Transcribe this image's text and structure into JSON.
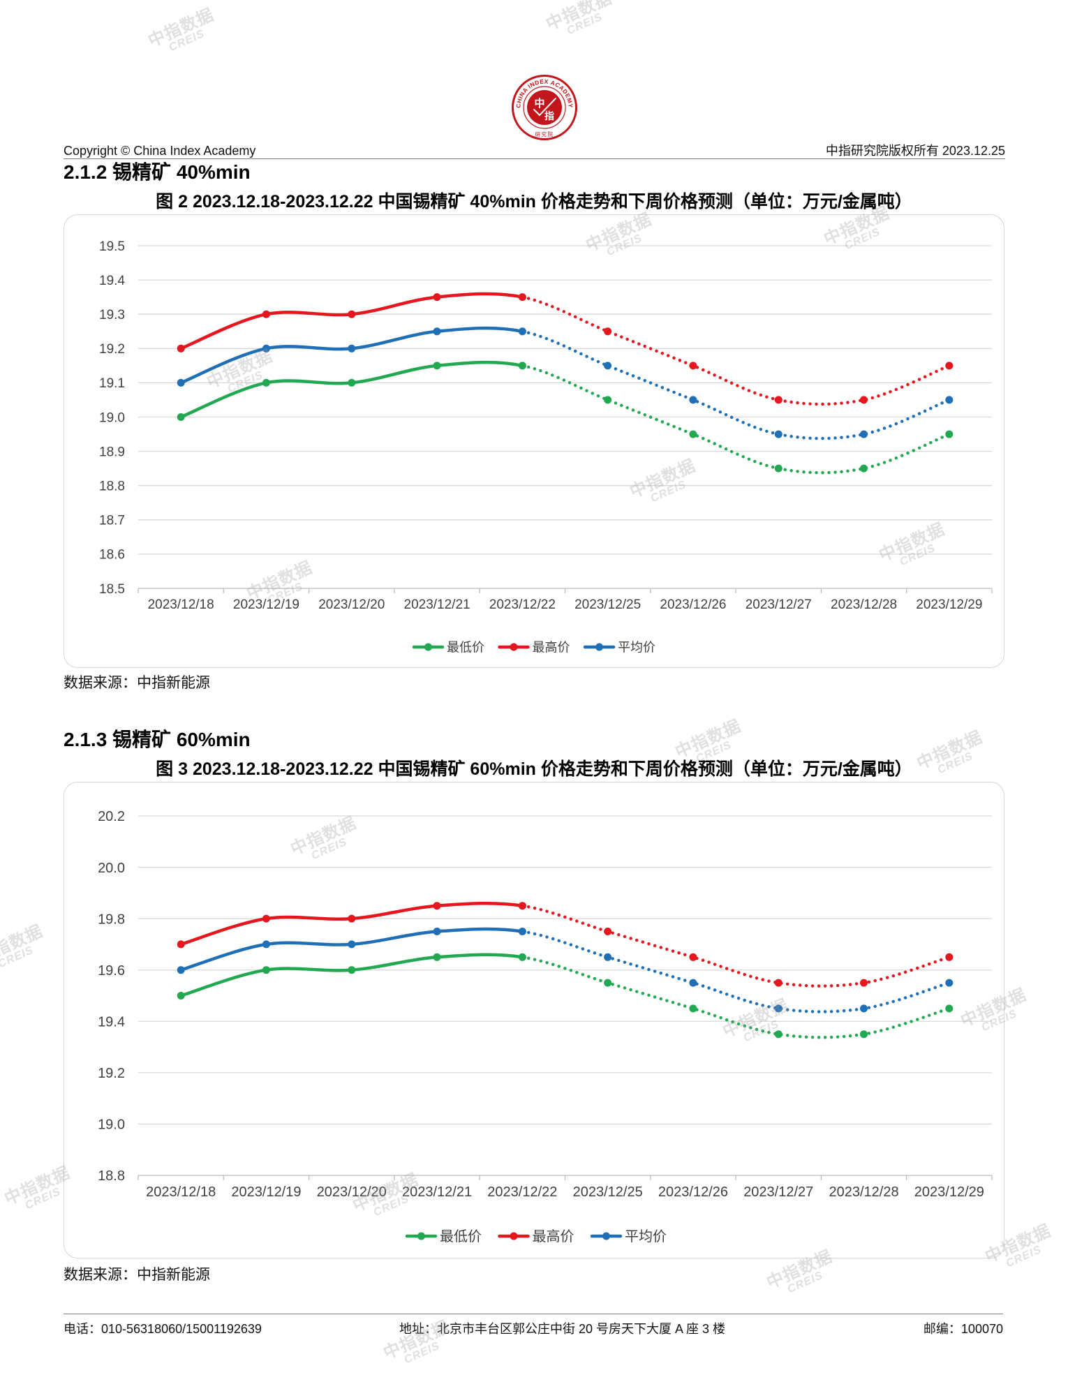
{
  "header": {
    "copyright": "Copyright © China Index Academy",
    "rights": "中指研究院版权所有 2023.12.25"
  },
  "logo": {
    "ring_text": "CHINA INDEX ACADEMY",
    "inner_top": "中",
    "inner_bottom": "指",
    "bottom_text": "研究院"
  },
  "watermark": {
    "cn": "中指数据",
    "en": "CREIS"
  },
  "sections": [
    {
      "heading": "2.1.2 锡精矿 40%min",
      "source": "数据来源：中指新能源"
    },
    {
      "heading": "2.1.3 锡精矿 60%min",
      "source": "数据来源：中指新能源"
    }
  ],
  "chart_data": [
    {
      "type": "line",
      "title": "图 2 2023.12.18-2023.12.22 中国锡精矿 40%min 价格走势和下周价格预测（单位：万元/金属吨）",
      "categories": [
        "2023/12/18",
        "2023/12/19",
        "2023/12/20",
        "2023/12/21",
        "2023/12/22",
        "2023/12/25",
        "2023/12/26",
        "2023/12/27",
        "2023/12/28",
        "2023/12/29"
      ],
      "yticks": [
        "19.5",
        "19.4",
        "19.3",
        "19.2",
        "19.1",
        "19.0",
        "18.9",
        "18.8",
        "18.7",
        "18.6",
        "18.5"
      ],
      "ylim": [
        18.5,
        19.5
      ],
      "grid": true,
      "legend": "bottom",
      "smooth": true,
      "dotted_from": "2023/12/22",
      "series": [
        {
          "name": "最低价",
          "color": "#21a851",
          "values": [
            19.0,
            19.1,
            19.1,
            19.15,
            19.15,
            19.05,
            18.95,
            18.85,
            18.85,
            18.95
          ]
        },
        {
          "name": "最高价",
          "color": "#e5161d",
          "values": [
            19.2,
            19.3,
            19.3,
            19.35,
            19.35,
            19.25,
            19.15,
            19.05,
            19.05,
            19.15
          ]
        },
        {
          "name": "平均价",
          "color": "#1f6fb6",
          "values": [
            19.1,
            19.2,
            19.2,
            19.25,
            19.25,
            19.15,
            19.05,
            18.95,
            18.95,
            19.05
          ]
        }
      ]
    },
    {
      "type": "line",
      "title": "图 3 2023.12.18-2023.12.22 中国锡精矿 60%min 价格走势和下周价格预测（单位：万元/金属吨）",
      "categories": [
        "2023/12/18",
        "2023/12/19",
        "2023/12/20",
        "2023/12/21",
        "2023/12/22",
        "2023/12/25",
        "2023/12/26",
        "2023/12/27",
        "2023/12/28",
        "2023/12/29"
      ],
      "yticks": [
        "20.2",
        "20.0",
        "19.8",
        "19.6",
        "19.4",
        "19.2",
        "19.0",
        "18.8"
      ],
      "ylim": [
        18.8,
        20.2
      ],
      "grid": true,
      "legend": "bottom",
      "smooth": true,
      "dotted_from": "2023/12/22",
      "series": [
        {
          "name": "最低价",
          "color": "#21a851",
          "values": [
            19.5,
            19.6,
            19.6,
            19.65,
            19.65,
            19.55,
            19.45,
            19.35,
            19.35,
            19.45
          ]
        },
        {
          "name": "最高价",
          "color": "#e5161d",
          "values": [
            19.7,
            19.8,
            19.8,
            19.85,
            19.85,
            19.75,
            19.65,
            19.55,
            19.55,
            19.65
          ]
        },
        {
          "name": "平均价",
          "color": "#1f6fb6",
          "values": [
            19.6,
            19.7,
            19.7,
            19.75,
            19.75,
            19.65,
            19.55,
            19.45,
            19.45,
            19.55
          ]
        }
      ]
    }
  ],
  "footer": {
    "phone": "电话：010-56318060/15001192639",
    "address": "地址：北京市丰台区郭公庄中街 20 号房天下大厦 A 座 3 楼",
    "postcode": "邮编：100070"
  }
}
